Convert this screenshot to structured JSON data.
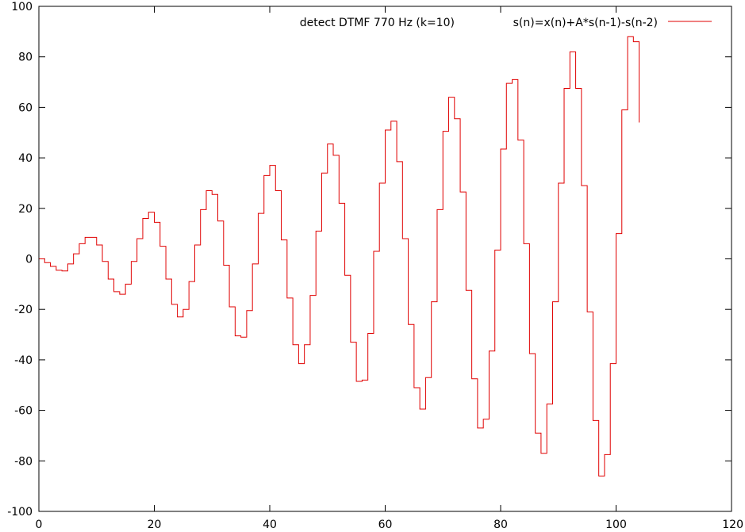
{
  "chart_data": {
    "type": "line",
    "title": "detect DTMF 770 Hz (k=10)",
    "xlabel": "",
    "ylabel": "",
    "xlim": [
      0,
      120
    ],
    "ylim": [
      -100,
      100
    ],
    "x_ticks": [
      0,
      20,
      40,
      60,
      80,
      100,
      120
    ],
    "y_ticks": [
      -100,
      -80,
      -60,
      -40,
      -20,
      0,
      20,
      40,
      60,
      80,
      100
    ],
    "x_tick_labels": [
      "0",
      "20",
      "40",
      "60",
      "80",
      "100",
      "120"
    ],
    "y_tick_labels": [
      "-100",
      "-80",
      "-60",
      "-40",
      "-20",
      "0",
      "20",
      "40",
      "60",
      "80",
      "100"
    ],
    "grid": false,
    "legend_position": "top-right",
    "step": true,
    "series": [
      {
        "name": "s(n)=x(n)+A*s(n-1)-s(n-2)",
        "color": "#e00000",
        "values": [
          0,
          -1.5,
          -3,
          -4.5,
          -4.8,
          -2,
          2,
          6,
          8.5,
          8.5,
          5.5,
          -1,
          -8,
          -13,
          -14,
          -10,
          -1,
          8,
          16,
          18.5,
          14.5,
          5,
          -8,
          -18,
          -23,
          -20,
          -9,
          5.5,
          19.5,
          27,
          25.5,
          15,
          -2.5,
          -19,
          -30.5,
          -31,
          -20.5,
          -2,
          18,
          33,
          37,
          27,
          7.5,
          -15.5,
          -34,
          -41.5,
          -34,
          -14.5,
          11,
          34,
          45.5,
          41,
          22,
          -6.5,
          -33,
          -48.5,
          -48,
          -29.5,
          3,
          30,
          51,
          54.5,
          38.5,
          8,
          -26,
          -51,
          -59.5,
          -47,
          -17,
          19.5,
          50.5,
          64,
          55.5,
          26.5,
          -12.5,
          -47.5,
          -67,
          -63.5,
          -36.5,
          3.5,
          43.5,
          69.5,
          71,
          47,
          6,
          -37.5,
          -69,
          -77,
          -57.5,
          -17,
          30,
          67.5,
          82,
          67.5,
          29,
          -21,
          -64,
          -86,
          -77.5,
          -41.5,
          10,
          59,
          88,
          86,
          54
        ]
      }
    ]
  }
}
